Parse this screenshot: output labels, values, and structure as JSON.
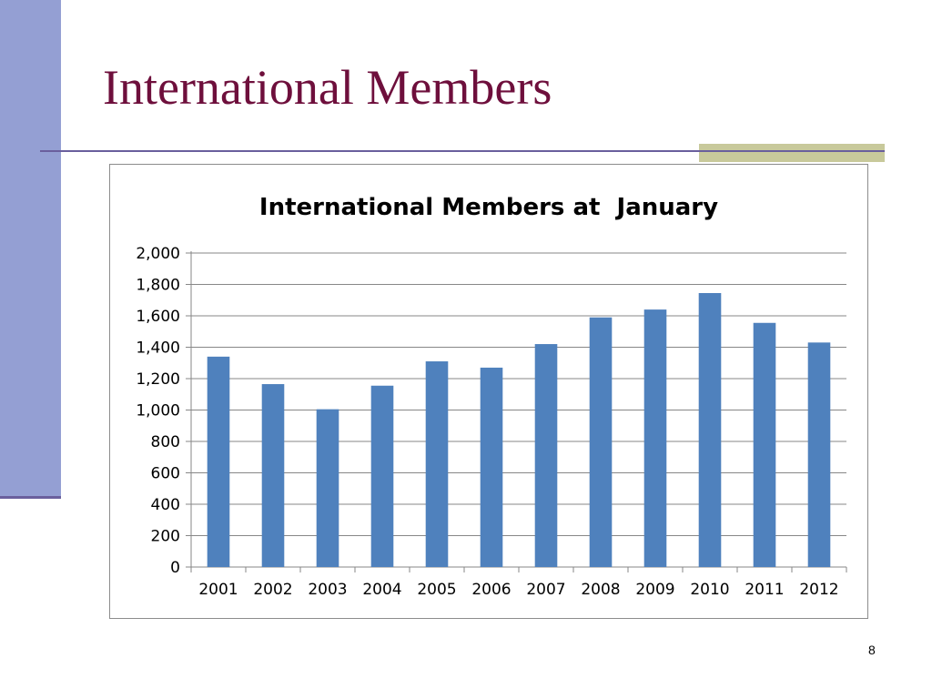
{
  "slide": {
    "title": "International Members",
    "page_number": "8"
  },
  "colors": {
    "title": "#6e0f3c",
    "sidebar": "#949fd3",
    "rule": "#6a5f9d",
    "accent": "#c8c99b",
    "bar": "#4f81bd"
  },
  "chart_data": {
    "type": "bar",
    "title": "International Members at  January",
    "categories": [
      "2001",
      "2002",
      "2003",
      "2004",
      "2005",
      "2006",
      "2007",
      "2008",
      "2009",
      "2010",
      "2011",
      "2012"
    ],
    "values": [
      1340,
      1165,
      1005,
      1155,
      1310,
      1270,
      1420,
      1590,
      1640,
      1745,
      1555,
      1430
    ],
    "ylim": [
      0,
      2000
    ],
    "yticks": [
      "0",
      "200",
      "400",
      "600",
      "800",
      "1,000",
      "1,200",
      "1,400",
      "1,600",
      "1,800",
      "2,000"
    ],
    "grid": true,
    "legend": "none"
  }
}
